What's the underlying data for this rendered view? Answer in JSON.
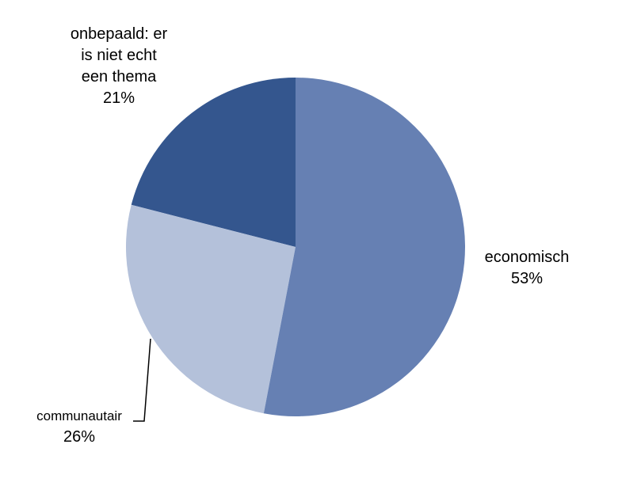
{
  "chart_data": {
    "type": "pie",
    "categories": [
      "economisch",
      "communautair",
      "onbepaald: er is niet echt een thema"
    ],
    "values": [
      53,
      26,
      21
    ],
    "value_labels": [
      "53%",
      "26%",
      "21%"
    ],
    "colors": [
      "#6680b3",
      "#b4c1da",
      "#34568e"
    ]
  }
}
